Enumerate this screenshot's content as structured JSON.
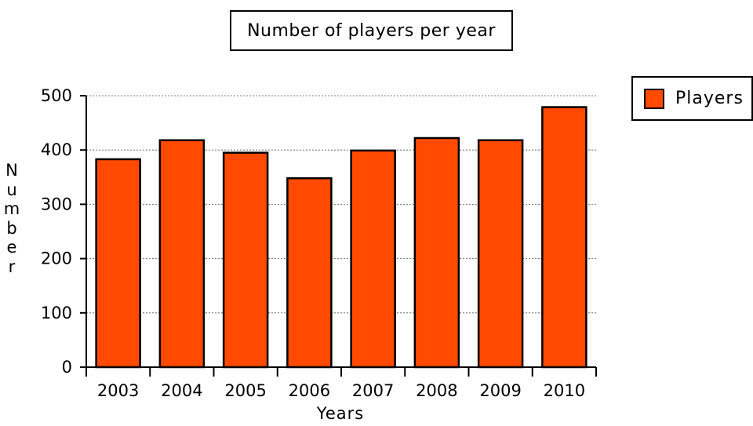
{
  "chart_data": {
    "type": "bar",
    "title": "Number of players per year",
    "xlabel": "Years",
    "ylabel": "Number",
    "categories": [
      "2003",
      "2004",
      "2005",
      "2006",
      "2007",
      "2008",
      "2009",
      "2010"
    ],
    "series": [
      {
        "name": "Players",
        "values": [
          383,
          418,
          395,
          348,
          399,
          422,
          418,
          479
        ]
      }
    ],
    "ylim": [
      0,
      500
    ],
    "yticks": [
      "0",
      "100",
      "200",
      "300",
      "400",
      "500"
    ],
    "grid": true,
    "legend_position": "top-right",
    "colors": {
      "bar": "#ff4a00",
      "outline": "#000000"
    }
  }
}
